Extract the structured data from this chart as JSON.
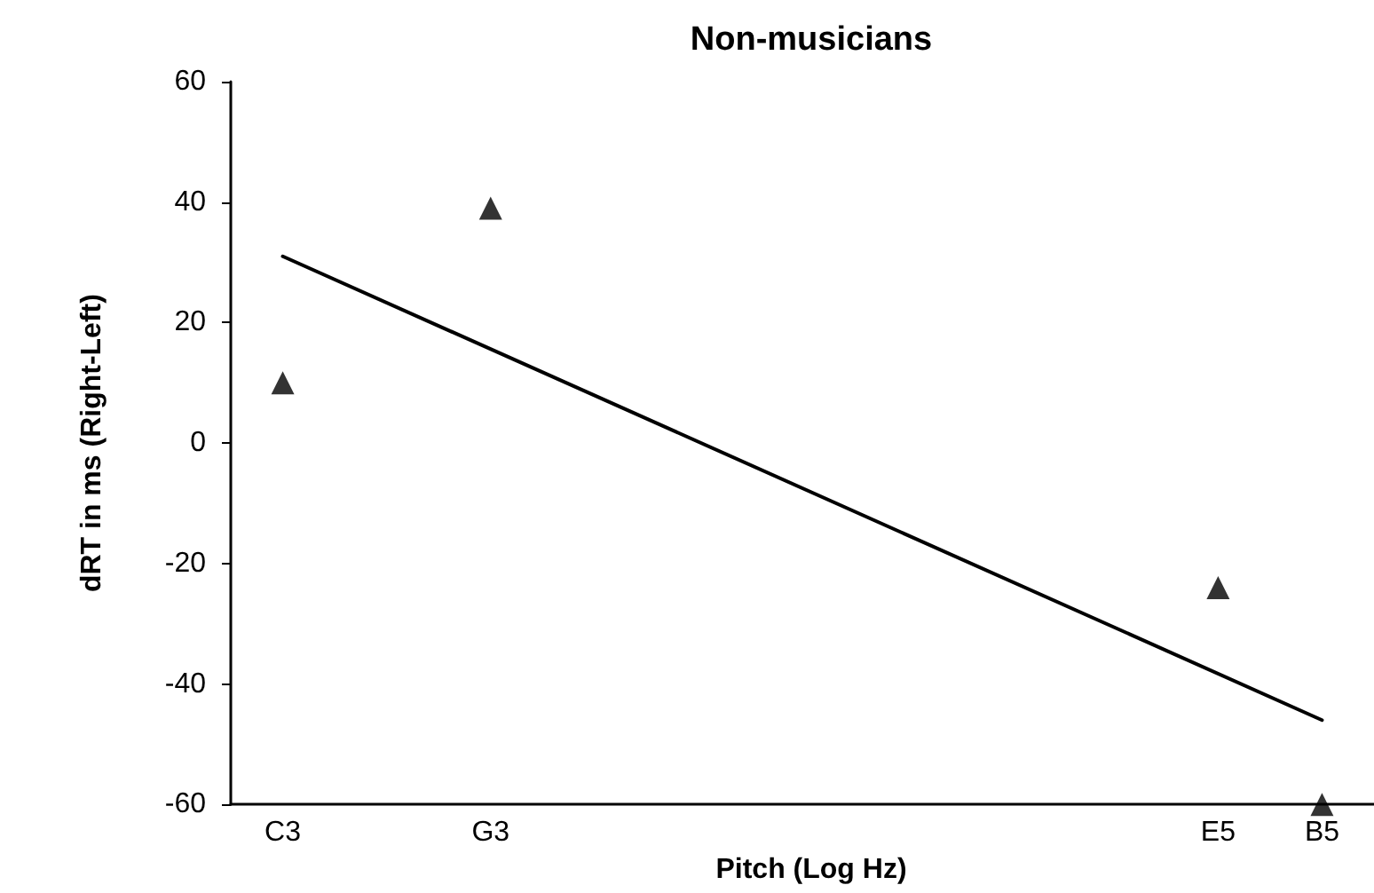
{
  "chart_data": {
    "type": "scatter",
    "title": "Non-musicians",
    "xlabel": "Pitch (Log Hz)",
    "ylabel": "dRT in ms (Right-Left)",
    "categories": [
      "C3",
      null,
      "G3",
      null,
      null,
      null,
      null,
      null,
      null,
      "E5",
      "B5"
    ],
    "series": [
      {
        "color": "#000000",
        "values": [
          10,
          null,
          39,
          null,
          null,
          null,
          null,
          null,
          null,
          -24,
          -60
        ],
        "marker": "triangle"
      },
      {
        "type": "line",
        "color": "#000000",
        "values": [
          31,
          null,
          null,
          null,
          null,
          null,
          null,
          null,
          null,
          null,
          -46
        ],
        "marker": "none",
        "line_style": "solid"
      }
    ],
    "ylim": [
      -60,
      60
    ],
    "yticks": [
      -60,
      -40,
      -20,
      0,
      20,
      40,
      60
    ],
    "grid": false
  }
}
